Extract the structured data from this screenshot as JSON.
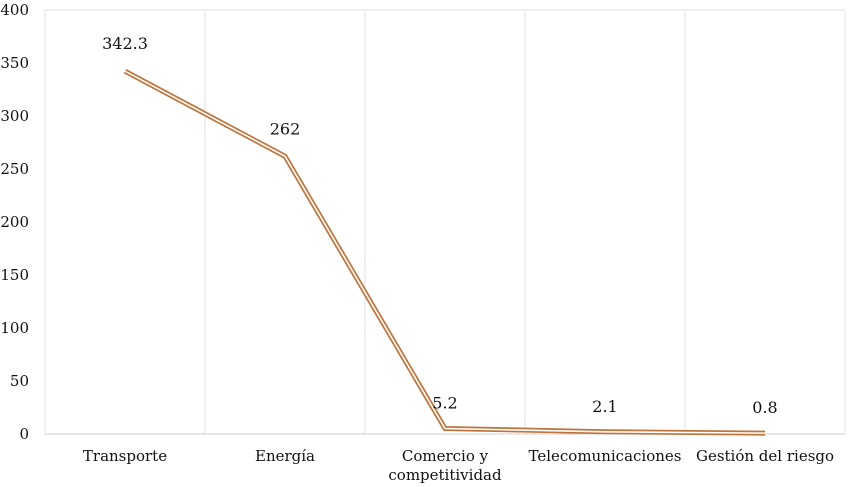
{
  "chart_data": {
    "type": "line",
    "categories": [
      "Transporte",
      "Energía",
      "Comercio y competitividad",
      "Telecomunicaciones",
      "Gestión del riesgo"
    ],
    "category_lines": [
      [
        "Transporte"
      ],
      [
        "Energía"
      ],
      [
        "Comercio y",
        "competitividad"
      ],
      [
        "Telecomunicaciones"
      ],
      [
        "Gestión del riesgo"
      ]
    ],
    "series": [
      {
        "values": [
          342.3,
          262,
          5.2,
          2.1,
          0.8
        ],
        "color": "#c0733a"
      }
    ],
    "data_labels": [
      "342.3",
      "262",
      "5.2",
      "2.1",
      "0.8"
    ],
    "ylim": [
      0,
      400
    ],
    "yticks": [
      0,
      50,
      100,
      150,
      200,
      250,
      300,
      350,
      400
    ],
    "grid": "vertical",
    "gridColor": "#e2e2e2",
    "axisColor": "#cfcfcf",
    "title": "",
    "xlabel": "",
    "ylabel": ""
  }
}
